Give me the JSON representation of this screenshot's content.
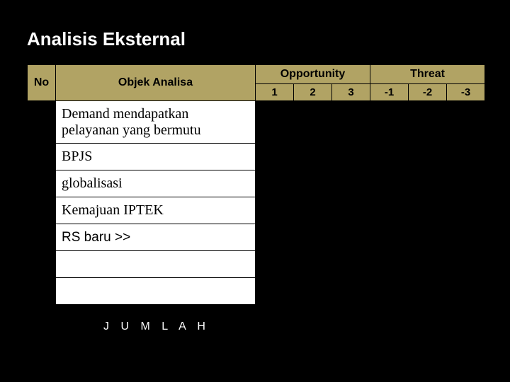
{
  "title": "Analisis Eksternal",
  "headers": {
    "no": "No",
    "objek": "Objek Analisa",
    "opp": "Opportunity",
    "threat": "Threat",
    "cols": [
      "1",
      "2",
      "3",
      "-1",
      "-2",
      "-3"
    ]
  },
  "rows": [
    {
      "objek": "Demand mendapatkan pelayanan yang bermutu",
      "tall": true,
      "serif": true
    },
    {
      "objek": "BPJS",
      "serif": true
    },
    {
      "objek": "globalisasi",
      "serif": true
    },
    {
      "objek": "Kemajuan IPTEK",
      "serif": true
    },
    {
      "objek": "RS baru  >>",
      "serif": false
    },
    {
      "objek": "",
      "serif": true
    },
    {
      "objek": "",
      "serif": true
    }
  ],
  "footer": "J U M L A H",
  "colors": {
    "header_bg": "#b1a364",
    "cell_bg": "#000000",
    "objek_bg": "#ffffff",
    "page_bg": "#000000",
    "title_color": "#ffffff"
  }
}
